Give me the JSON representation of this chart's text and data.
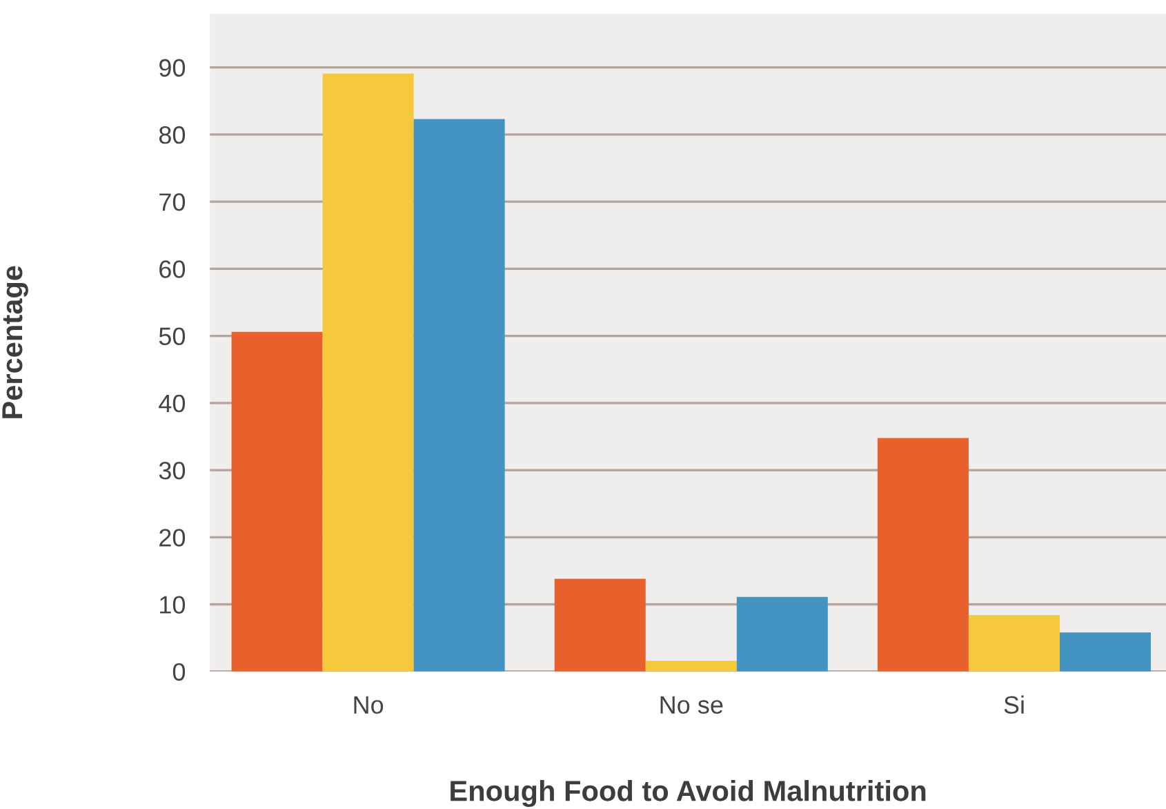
{
  "chart_data": {
    "type": "bar",
    "xlabel": "Enough Food to Avoid Malnutrition",
    "ylabel": "Percentage",
    "categories": [
      "No",
      "No se",
      "Si"
    ],
    "series": [
      {
        "color": "#e8602c",
        "values": [
          50.6,
          13.8,
          34.8
        ]
      },
      {
        "color": "#f5c93b",
        "values": [
          89.1,
          1.6,
          8.4
        ]
      },
      {
        "color": "#4393c3",
        "values": [
          82.3,
          11.1,
          5.8
        ]
      }
    ],
    "ylim": [
      0,
      98
    ],
    "yticks": [
      0,
      10,
      20,
      30,
      40,
      50,
      60,
      70,
      80,
      90
    ],
    "grid": "y",
    "legend": false
  }
}
